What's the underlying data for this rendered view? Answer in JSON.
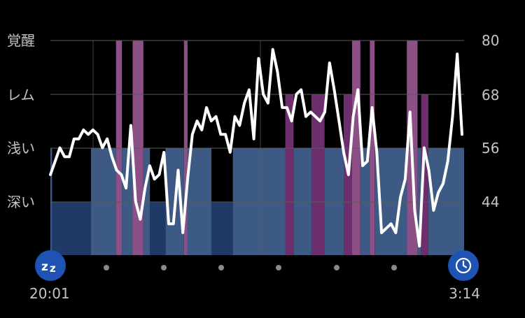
{
  "colors": {
    "background": "#000000",
    "light_sleep": "#3d5a85",
    "deep_sleep": "#1f3a66",
    "rem": "#6d2e6e",
    "awake": "#8c4f86",
    "heart_rate_line": "#ffffff",
    "grid": "#5a5a5a",
    "marker": "#1e52b3",
    "dot": "#8a8a8a",
    "label": "#c4c4c4"
  },
  "stage_labels": [
    "覚醒",
    "レム",
    "浅い",
    "深い"
  ],
  "time_labels": {
    "start": "20:01",
    "end": "3:14"
  },
  "icons": {
    "start": "sleep-zz-icon",
    "end": "alarm-clock-icon"
  },
  "chart_data": {
    "type": "area",
    "x_range": [
      "20:01",
      "3:14"
    ],
    "time_axis_minutes": 433,
    "sleep_stages": [
      {
        "stage": "浅い",
        "start_min": 0,
        "end_min": 1.4
      },
      {
        "stage": "深い",
        "start_min": 1.4,
        "end_min": 34
      },
      {
        "stage": "浅い",
        "start_min": 34,
        "end_min": 55
      },
      {
        "stage": "覚醒",
        "start_min": 55,
        "end_min": 60
      },
      {
        "stage": "浅い",
        "start_min": 60,
        "end_min": 69
      },
      {
        "stage": "覚醒",
        "start_min": 69,
        "end_min": 78
      },
      {
        "stage": "浅い",
        "start_min": 78,
        "end_min": 83.5
      },
      {
        "stage": "深い",
        "start_min": 83.5,
        "end_min": 96.5
      },
      {
        "stage": "浅い",
        "start_min": 96.5,
        "end_min": 112
      },
      {
        "stage": "覚醒",
        "start_min": 112,
        "end_min": 115
      },
      {
        "stage": "浅い",
        "start_min": 115,
        "end_min": 135
      },
      {
        "stage": "深い",
        "start_min": 135,
        "end_min": 153
      },
      {
        "stage": "浅い",
        "start_min": 153,
        "end_min": 197
      },
      {
        "stage": "レム",
        "start_min": 197,
        "end_min": 204
      },
      {
        "stage": "浅い",
        "start_min": 204,
        "end_min": 219
      },
      {
        "stage": "レム",
        "start_min": 219,
        "end_min": 230
      },
      {
        "stage": "浅い",
        "start_min": 230,
        "end_min": 246
      },
      {
        "stage": "レム",
        "start_min": 246,
        "end_min": 253
      },
      {
        "stage": "覚醒",
        "start_min": 253,
        "end_min": 260
      },
      {
        "stage": "浅い",
        "start_min": 260,
        "end_min": 268
      },
      {
        "stage": "覚醒",
        "start_min": 268,
        "end_min": 272
      },
      {
        "stage": "浅い",
        "start_min": 272,
        "end_min": 299
      },
      {
        "stage": "覚醒",
        "start_min": 299,
        "end_min": 308
      },
      {
        "stage": "浅い",
        "start_min": 308,
        "end_min": 311
      },
      {
        "stage": "レム",
        "start_min": 311,
        "end_min": 317
      },
      {
        "stage": "浅い",
        "start_min": 317,
        "end_min": 347
      }
    ],
    "heart_rate": {
      "y_ticks": [
        80,
        68,
        56,
        44
      ],
      "ylim": [
        32,
        80
      ],
      "points": [
        [
          0,
          50
        ],
        [
          3,
          53
        ],
        [
          6,
          56
        ],
        [
          9,
          54
        ],
        [
          12,
          54
        ],
        [
          15,
          58
        ],
        [
          18,
          58
        ],
        [
          21,
          60
        ],
        [
          24,
          59
        ],
        [
          27,
          60
        ],
        [
          30,
          59
        ],
        [
          33,
          56
        ],
        [
          36,
          58
        ],
        [
          39,
          54
        ],
        [
          42,
          51
        ],
        [
          45,
          50
        ],
        [
          48,
          47
        ],
        [
          51,
          61
        ],
        [
          54,
          44
        ],
        [
          57,
          40
        ],
        [
          60,
          47
        ],
        [
          63,
          52
        ],
        [
          66,
          49
        ],
        [
          69,
          50
        ],
        [
          72,
          55
        ],
        [
          75,
          39
        ],
        [
          78,
          39
        ],
        [
          81,
          51
        ],
        [
          84,
          37
        ],
        [
          87,
          49
        ],
        [
          90,
          59
        ],
        [
          93,
          62
        ],
        [
          96,
          60
        ],
        [
          99,
          65
        ],
        [
          102,
          62
        ],
        [
          105,
          63
        ],
        [
          108,
          59
        ],
        [
          111,
          59
        ],
        [
          114,
          55
        ],
        [
          117,
          63
        ],
        [
          120,
          61
        ],
        [
          123,
          66
        ],
        [
          126,
          69
        ],
        [
          129,
          58
        ],
        [
          132,
          76
        ],
        [
          135,
          68
        ],
        [
          138,
          66
        ],
        [
          141,
          78
        ],
        [
          144,
          73
        ],
        [
          147,
          65
        ],
        [
          150,
          65
        ],
        [
          153,
          62
        ],
        [
          156,
          68
        ],
        [
          159,
          69
        ],
        [
          162,
          63
        ],
        [
          165,
          64
        ],
        [
          168,
          63
        ],
        [
          171,
          62
        ],
        [
          174,
          64
        ],
        [
          177,
          75
        ],
        [
          180,
          69
        ],
        [
          183,
          62
        ],
        [
          186,
          55
        ],
        [
          189,
          50
        ],
        [
          192,
          63
        ],
        [
          195,
          69
        ],
        [
          198,
          52
        ],
        [
          201,
          53
        ],
        [
          204,
          65
        ],
        [
          207,
          55
        ],
        [
          210,
          37
        ],
        [
          213,
          38
        ],
        [
          216,
          39
        ],
        [
          219,
          37
        ],
        [
          222,
          45
        ],
        [
          225,
          49
        ],
        [
          228,
          64
        ],
        [
          231,
          42
        ],
        [
          234,
          34
        ],
        [
          237,
          56
        ],
        [
          240,
          51
        ],
        [
          243,
          42
        ],
        [
          246,
          46
        ],
        [
          249,
          48
        ],
        [
          252,
          53
        ],
        [
          255,
          63
        ],
        [
          258,
          77
        ],
        [
          261,
          59
        ]
      ]
    }
  }
}
